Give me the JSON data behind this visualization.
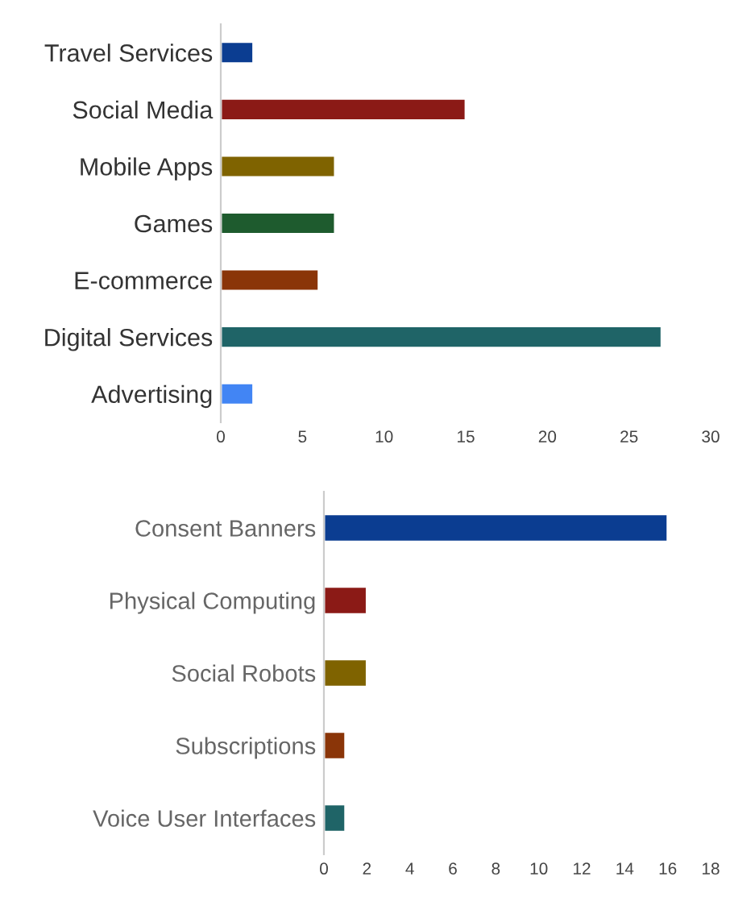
{
  "chart_data": [
    {
      "type": "bar",
      "orientation": "horizontal",
      "categories": [
        "Travel Services",
        "Social Media",
        "Mobile Apps",
        "Games",
        "E-commerce",
        "Digital Services",
        "Advertising"
      ],
      "values": [
        2,
        15,
        7,
        7,
        6,
        27,
        2
      ],
      "colors": [
        "#0b3d91",
        "#8b1a16",
        "#7f6300",
        "#1e5b2e",
        "#8a3508",
        "#1f6467",
        "#4285f4"
      ],
      "xlim": [
        0,
        30
      ],
      "xticks": [
        0,
        5,
        10,
        15,
        20,
        25,
        30
      ],
      "grid": false
    },
    {
      "type": "bar",
      "orientation": "horizontal",
      "categories": [
        "Consent Banners",
        "Physical Computing",
        "Social Robots",
        "Subscriptions",
        "Voice User Interfaces"
      ],
      "values": [
        16,
        2,
        2,
        1,
        1
      ],
      "colors": [
        "#0b3d91",
        "#8b1a16",
        "#7f6300",
        "#8a3508",
        "#1f6467"
      ],
      "xlim": [
        0,
        18
      ],
      "xticks": [
        0,
        2,
        4,
        6,
        8,
        10,
        12,
        14,
        16,
        18
      ],
      "grid": false
    }
  ]
}
